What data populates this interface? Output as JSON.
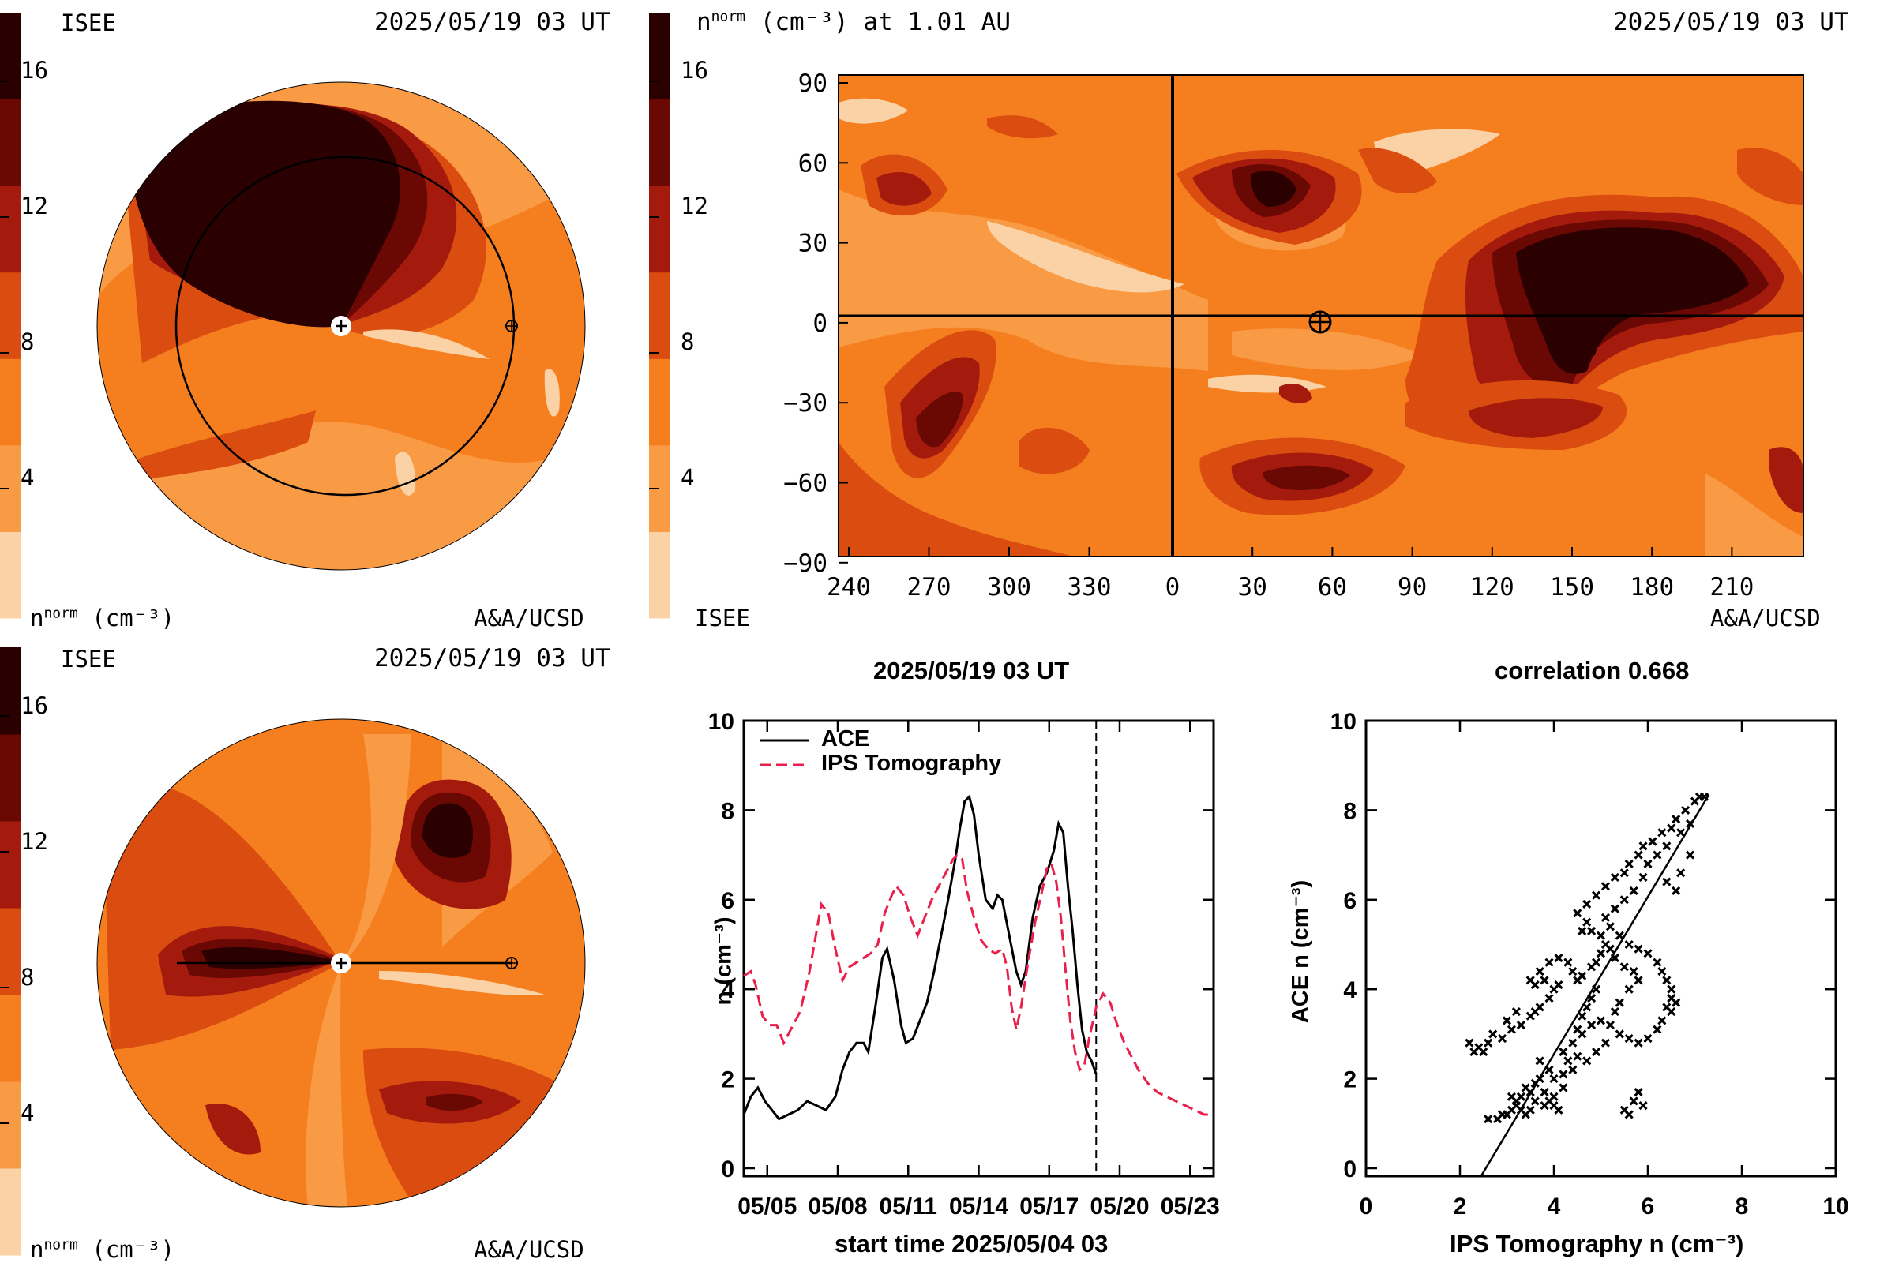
{
  "colors": {
    "levels": [
      "#fbd2a6",
      "#f99b45",
      "#f57f1f",
      "#da4c0f",
      "#a41b0e",
      "#6a0804",
      "#2a0000"
    ],
    "background": "#ffffff",
    "ips_line": "#e8204b",
    "ace_line": "#000000"
  },
  "panel_top_left": {
    "org_label": "ISEE",
    "timestamp": "2025/05/19 03 UT",
    "colorbar_ticks": [
      "16",
      "12",
      "8",
      "4"
    ],
    "unit_label": "n",
    "unit_sup": "norm",
    "unit_tail": "(cm⁻³)",
    "credit": "A&A/UCSD"
  },
  "panel_bottom_left": {
    "org_label": "ISEE",
    "timestamp": "2025/05/19 03 UT",
    "colorbar_ticks": [
      "16",
      "12",
      "8",
      "4"
    ],
    "unit_label": "n",
    "unit_sup": "norm",
    "unit_tail": "(cm⁻³)",
    "credit": "A&A/UCSD"
  },
  "panel_map": {
    "title_n": "n",
    "title_sup": "norm",
    "title_tail": "(cm⁻³) at 1.01 AU",
    "timestamp": "2025/05/19 03 UT",
    "colorbar_ticks": [
      "16",
      "12",
      "8",
      "4"
    ],
    "org_label": "ISEE",
    "credit": "A&A/UCSD",
    "x_ticks": [
      "240",
      "270",
      "300",
      "330",
      "0",
      "30",
      "60",
      "90",
      "120",
      "150",
      "180",
      "210"
    ],
    "y_ticks": [
      "90",
      "60",
      "30",
      "0",
      "−30",
      "−60",
      "−90"
    ]
  },
  "chart_data": [
    {
      "type": "line",
      "title": "2025/05/19 03 UT",
      "xlabel": "start time 2025/05/04 03",
      "ylabel": "n (cm⁻³)",
      "x_ticks": [
        "05/05",
        "05/08",
        "05/11",
        "05/14",
        "05/17",
        "05/20",
        "05/23"
      ],
      "y_ticks": [
        "0",
        "2",
        "4",
        "6",
        "8",
        "10"
      ],
      "ylim": [
        0,
        10
      ],
      "xlim_days": [
        0,
        20
      ],
      "marker_day": 15.0,
      "legend_position": "top-left",
      "series": [
        {
          "name": "ACE",
          "style": "solid",
          "points": [
            [
              0.0,
              1.2
            ],
            [
              0.3,
              1.6
            ],
            [
              0.6,
              1.8
            ],
            [
              0.9,
              1.5
            ],
            [
              1.2,
              1.3
            ],
            [
              1.5,
              1.1
            ],
            [
              1.9,
              1.2
            ],
            [
              2.3,
              1.3
            ],
            [
              2.7,
              1.5
            ],
            [
              3.1,
              1.4
            ],
            [
              3.5,
              1.3
            ],
            [
              3.9,
              1.6
            ],
            [
              4.2,
              2.2
            ],
            [
              4.5,
              2.6
            ],
            [
              4.8,
              2.8
            ],
            [
              5.1,
              2.8
            ],
            [
              5.3,
              2.6
            ],
            [
              5.6,
              3.6
            ],
            [
              5.9,
              4.7
            ],
            [
              6.1,
              4.9
            ],
            [
              6.4,
              4.2
            ],
            [
              6.7,
              3.2
            ],
            [
              6.9,
              2.8
            ],
            [
              7.2,
              2.9
            ],
            [
              7.5,
              3.3
            ],
            [
              7.8,
              3.7
            ],
            [
              8.1,
              4.4
            ],
            [
              8.4,
              5.2
            ],
            [
              8.7,
              6.0
            ],
            [
              9.0,
              6.9
            ],
            [
              9.2,
              7.6
            ],
            [
              9.4,
              8.2
            ],
            [
              9.6,
              8.3
            ],
            [
              9.8,
              7.9
            ],
            [
              10.0,
              7.0
            ],
            [
              10.3,
              6.0
            ],
            [
              10.6,
              5.8
            ],
            [
              10.8,
              6.1
            ],
            [
              11.0,
              6.0
            ],
            [
              11.3,
              5.2
            ],
            [
              11.6,
              4.4
            ],
            [
              11.8,
              4.1
            ],
            [
              12.0,
              4.4
            ],
            [
              12.3,
              5.6
            ],
            [
              12.6,
              6.3
            ],
            [
              12.9,
              6.6
            ],
            [
              13.2,
              7.1
            ],
            [
              13.4,
              7.7
            ],
            [
              13.6,
              7.5
            ],
            [
              13.8,
              6.3
            ],
            [
              14.0,
              5.3
            ],
            [
              14.2,
              4.1
            ],
            [
              14.4,
              3.1
            ],
            [
              14.6,
              2.6
            ],
            [
              14.8,
              2.4
            ],
            [
              15.0,
              2.1
            ]
          ]
        },
        {
          "name": "IPS Tomography",
          "style": "dashed",
          "points": [
            [
              0.0,
              4.3
            ],
            [
              0.3,
              4.4
            ],
            [
              0.5,
              4.1
            ],
            [
              0.8,
              3.4
            ],
            [
              1.1,
              3.2
            ],
            [
              1.4,
              3.2
            ],
            [
              1.7,
              2.8
            ],
            [
              2.0,
              3.1
            ],
            [
              2.4,
              3.5
            ],
            [
              2.8,
              4.4
            ],
            [
              3.1,
              5.3
            ],
            [
              3.3,
              5.9
            ],
            [
              3.6,
              5.7
            ],
            [
              3.9,
              4.9
            ],
            [
              4.2,
              4.2
            ],
            [
              4.5,
              4.5
            ],
            [
              4.8,
              4.6
            ],
            [
              5.1,
              4.7
            ],
            [
              5.4,
              4.8
            ],
            [
              5.7,
              5.0
            ],
            [
              6.0,
              5.7
            ],
            [
              6.3,
              6.1
            ],
            [
              6.5,
              6.3
            ],
            [
              6.8,
              6.1
            ],
            [
              7.1,
              5.6
            ],
            [
              7.4,
              5.2
            ],
            [
              7.7,
              5.6
            ],
            [
              8.0,
              6.0
            ],
            [
              8.3,
              6.3
            ],
            [
              8.6,
              6.6
            ],
            [
              8.9,
              6.9
            ],
            [
              9.1,
              7.0
            ],
            [
              9.3,
              6.9
            ],
            [
              9.5,
              6.2
            ],
            [
              9.8,
              5.6
            ],
            [
              10.1,
              5.1
            ],
            [
              10.4,
              4.9
            ],
            [
              10.7,
              4.8
            ],
            [
              11.0,
              4.9
            ],
            [
              11.2,
              4.5
            ],
            [
              11.4,
              3.6
            ],
            [
              11.6,
              3.1
            ],
            [
              11.8,
              3.6
            ],
            [
              12.1,
              4.6
            ],
            [
              12.4,
              5.5
            ],
            [
              12.7,
              6.2
            ],
            [
              12.9,
              6.7
            ],
            [
              13.1,
              6.8
            ],
            [
              13.3,
              6.4
            ],
            [
              13.5,
              5.6
            ],
            [
              13.7,
              4.4
            ],
            [
              13.9,
              3.3
            ],
            [
              14.1,
              2.6
            ],
            [
              14.3,
              2.2
            ],
            [
              14.5,
              2.3
            ],
            [
              14.7,
              2.9
            ],
            [
              15.0,
              3.6
            ],
            [
              15.3,
              3.9
            ],
            [
              15.6,
              3.7
            ],
            [
              15.9,
              3.2
            ],
            [
              16.2,
              2.8
            ],
            [
              16.5,
              2.5
            ],
            [
              16.8,
              2.2
            ],
            [
              17.2,
              1.9
            ],
            [
              17.6,
              1.7
            ],
            [
              18.0,
              1.6
            ],
            [
              18.4,
              1.5
            ],
            [
              18.8,
              1.4
            ],
            [
              19.2,
              1.3
            ],
            [
              19.6,
              1.2
            ],
            [
              20.0,
              1.2
            ]
          ]
        }
      ]
    },
    {
      "type": "scatter",
      "title": "correlation 0.668",
      "xlabel": "IPS Tomography n (cm⁻³)",
      "ylabel": "ACE n (cm⁻³)",
      "x_ticks": [
        "0",
        "2",
        "4",
        "6",
        "8",
        "10"
      ],
      "y_ticks": [
        "0",
        "2",
        "4",
        "6",
        "8",
        "10"
      ],
      "xlim": [
        0,
        10
      ],
      "ylim": [
        0,
        10
      ],
      "fit_line": [
        [
          2.45,
          0.0
        ],
        [
          7.3,
          8.35
        ]
      ],
      "points": [
        [
          2.6,
          1.1
        ],
        [
          2.8,
          1.1
        ],
        [
          2.9,
          1.2
        ],
        [
          3.0,
          1.2
        ],
        [
          3.1,
          1.3
        ],
        [
          3.2,
          1.4
        ],
        [
          3.1,
          1.6
        ],
        [
          3.2,
          1.5
        ],
        [
          3.3,
          1.6
        ],
        [
          3.4,
          1.8
        ],
        [
          3.5,
          1.7
        ],
        [
          3.6,
          1.9
        ],
        [
          3.7,
          2.0
        ],
        [
          3.8,
          1.7
        ],
        [
          3.9,
          1.5
        ],
        [
          4.0,
          1.4
        ],
        [
          4.1,
          1.3
        ],
        [
          4.0,
          1.6
        ],
        [
          4.2,
          1.8
        ],
        [
          3.8,
          1.4
        ],
        [
          3.6,
          1.5
        ],
        [
          3.5,
          1.3
        ],
        [
          3.4,
          1.2
        ],
        [
          3.3,
          1.3
        ],
        [
          2.2,
          2.8
        ],
        [
          2.3,
          2.6
        ],
        [
          2.4,
          2.7
        ],
        [
          2.5,
          2.6
        ],
        [
          2.6,
          2.8
        ],
        [
          2.7,
          3.0
        ],
        [
          2.9,
          2.9
        ],
        [
          3.1,
          3.1
        ],
        [
          3.3,
          3.2
        ],
        [
          3.5,
          3.4
        ],
        [
          3.2,
          3.5
        ],
        [
          3.0,
          3.3
        ],
        [
          3.6,
          3.5
        ],
        [
          3.7,
          3.6
        ],
        [
          3.9,
          3.8
        ],
        [
          4.0,
          4.0
        ],
        [
          4.1,
          4.1
        ],
        [
          3.8,
          4.2
        ],
        [
          3.6,
          4.1
        ],
        [
          3.5,
          4.2
        ],
        [
          3.7,
          4.4
        ],
        [
          3.9,
          4.6
        ],
        [
          4.1,
          4.7
        ],
        [
          4.3,
          4.6
        ],
        [
          4.4,
          4.4
        ],
        [
          4.5,
          4.2
        ],
        [
          4.6,
          4.3
        ],
        [
          4.8,
          4.5
        ],
        [
          4.9,
          4.6
        ],
        [
          5.0,
          4.8
        ],
        [
          5.1,
          5.0
        ],
        [
          5.0,
          5.2
        ],
        [
          4.8,
          5.3
        ],
        [
          4.7,
          5.5
        ],
        [
          4.6,
          5.3
        ],
        [
          4.5,
          5.7
        ],
        [
          4.7,
          5.9
        ],
        [
          4.9,
          6.1
        ],
        [
          5.1,
          6.3
        ],
        [
          5.3,
          6.5
        ],
        [
          5.5,
          6.6
        ],
        [
          5.6,
          6.8
        ],
        [
          5.8,
          7.0
        ],
        [
          5.9,
          7.2
        ],
        [
          6.1,
          7.3
        ],
        [
          6.3,
          7.5
        ],
        [
          6.5,
          7.6
        ],
        [
          6.6,
          7.8
        ],
        [
          6.8,
          8.0
        ],
        [
          7.0,
          8.2
        ],
        [
          7.1,
          8.3
        ],
        [
          7.2,
          8.3
        ],
        [
          6.9,
          7.7
        ],
        [
          6.7,
          7.5
        ],
        [
          6.4,
          7.2
        ],
        [
          6.2,
          7.0
        ],
        [
          6.0,
          6.8
        ],
        [
          5.9,
          6.5
        ],
        [
          5.7,
          6.2
        ],
        [
          5.5,
          6.0
        ],
        [
          5.3,
          5.8
        ],
        [
          5.1,
          5.6
        ],
        [
          5.2,
          5.4
        ],
        [
          5.4,
          5.2
        ],
        [
          5.6,
          5.0
        ],
        [
          5.8,
          4.9
        ],
        [
          6.0,
          4.8
        ],
        [
          6.2,
          4.6
        ],
        [
          6.3,
          4.4
        ],
        [
          6.4,
          4.2
        ],
        [
          6.5,
          4.0
        ],
        [
          6.5,
          3.8
        ],
        [
          6.4,
          3.6
        ],
        [
          6.3,
          3.3
        ],
        [
          6.2,
          3.1
        ],
        [
          6.0,
          2.9
        ],
        [
          5.8,
          2.8
        ],
        [
          5.6,
          2.9
        ],
        [
          5.4,
          3.0
        ],
        [
          5.2,
          3.2
        ],
        [
          5.0,
          3.3
        ],
        [
          4.8,
          3.2
        ],
        [
          4.6,
          3.0
        ],
        [
          4.4,
          2.8
        ],
        [
          4.2,
          2.6
        ],
        [
          4.3,
          2.4
        ],
        [
          4.5,
          2.5
        ],
        [
          4.7,
          2.4
        ],
        [
          4.9,
          2.6
        ],
        [
          5.1,
          2.8
        ],
        [
          5.3,
          3.5
        ],
        [
          5.4,
          3.7
        ],
        [
          5.6,
          4.0
        ],
        [
          5.8,
          4.2
        ],
        [
          5.7,
          4.4
        ],
        [
          5.5,
          4.5
        ],
        [
          5.3,
          4.7
        ],
        [
          5.2,
          4.9
        ],
        [
          4.9,
          4.0
        ],
        [
          4.8,
          3.8
        ],
        [
          4.7,
          3.6
        ],
        [
          4.6,
          3.4
        ],
        [
          4.5,
          3.1
        ],
        [
          5.5,
          1.3
        ],
        [
          5.7,
          1.5
        ],
        [
          5.8,
          1.7
        ],
        [
          5.9,
          1.4
        ],
        [
          5.6,
          1.2
        ],
        [
          4.4,
          2.2
        ],
        [
          4.2,
          2.1
        ],
        [
          4.0,
          2.0
        ],
        [
          3.9,
          2.2
        ],
        [
          3.7,
          2.4
        ],
        [
          6.5,
          3.5
        ],
        [
          6.6,
          3.7
        ],
        [
          6.6,
          6.2
        ],
        [
          6.4,
          6.4
        ],
        [
          6.7,
          6.6
        ],
        [
          6.9,
          7.0
        ]
      ]
    }
  ]
}
